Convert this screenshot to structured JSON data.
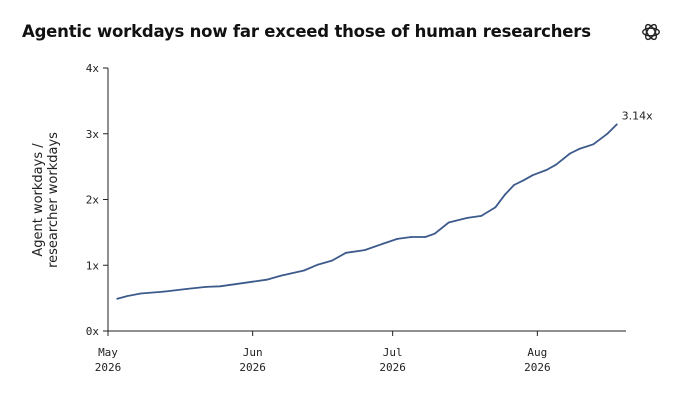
{
  "chart_data": {
    "type": "line",
    "title": "Agentic workdays now far exceed those of human researchers",
    "ylabel_lines": [
      "Agent workdays /",
      "researcher workdays"
    ],
    "xlabel": "",
    "ylim": [
      0,
      4
    ],
    "yticks": [
      0,
      1,
      2,
      3,
      4
    ],
    "ytick_labels": [
      "0x",
      "1x",
      "2x",
      "3x",
      "4x"
    ],
    "xlim": [
      "2026-05-01",
      "2026-08-20"
    ],
    "xticks": [
      {
        "date": "2026-05-01",
        "month": "May",
        "year": "2026"
      },
      {
        "date": "2026-06-01",
        "month": "Jun",
        "year": "2026"
      },
      {
        "date": "2026-07-01",
        "month": "Jul",
        "year": "2026"
      },
      {
        "date": "2026-08-01",
        "month": "Aug",
        "year": "2026"
      }
    ],
    "grid": false,
    "color": "#3d5a8c",
    "end_label": "3.14x",
    "series": [
      {
        "x": [
          "2026-05-03",
          "2026-05-05",
          "2026-05-08",
          "2026-05-13",
          "2026-05-18",
          "2026-05-22",
          "2026-05-25",
          "2026-05-29",
          "2026-06-01",
          "2026-06-04",
          "2026-06-07",
          "2026-06-12",
          "2026-06-15",
          "2026-06-18",
          "2026-06-21",
          "2026-06-25",
          "2026-06-29",
          "2026-07-02",
          "2026-07-05",
          "2026-07-08",
          "2026-07-10",
          "2026-07-13",
          "2026-07-17",
          "2026-07-20",
          "2026-07-23",
          "2026-07-25",
          "2026-07-27",
          "2026-07-29",
          "2026-07-31",
          "2026-08-03",
          "2026-08-05",
          "2026-08-08",
          "2026-08-10",
          "2026-08-13",
          "2026-08-16",
          "2026-08-18"
        ],
        "y": [
          0.49,
          0.53,
          0.57,
          0.6,
          0.64,
          0.67,
          0.68,
          0.72,
          0.75,
          0.78,
          0.84,
          0.92,
          1.01,
          1.07,
          1.19,
          1.23,
          1.33,
          1.4,
          1.43,
          1.43,
          1.48,
          1.65,
          1.72,
          1.75,
          1.88,
          2.07,
          2.22,
          2.29,
          2.37,
          2.45,
          2.53,
          2.7,
          2.77,
          2.84,
          3.0,
          3.14
        ]
      }
    ]
  },
  "brand": {
    "logo_icon": "openai-logo-icon"
  }
}
